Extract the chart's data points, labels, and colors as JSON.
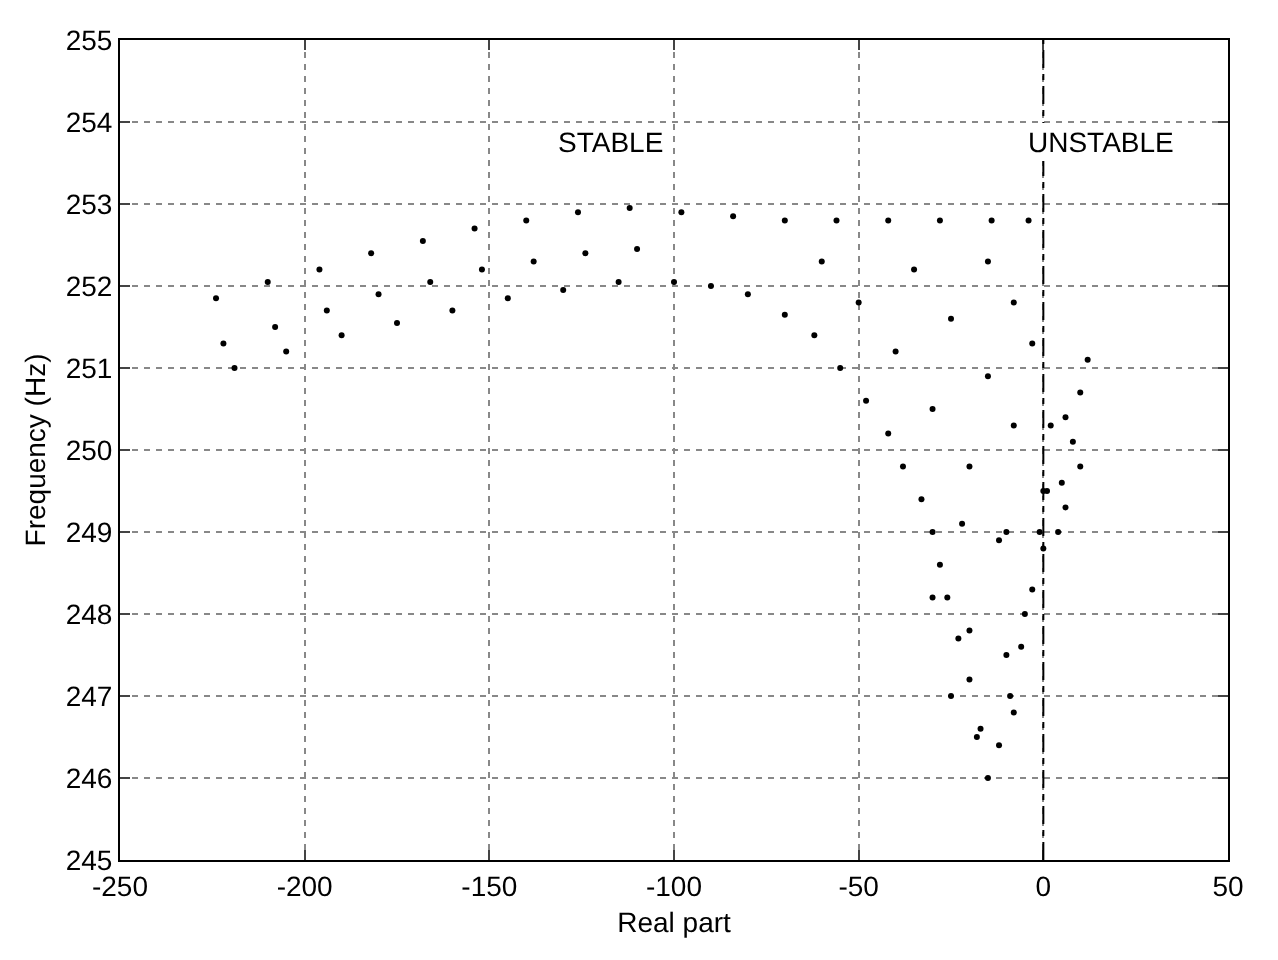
{
  "chart_data": {
    "type": "scatter",
    "xlabel": "Real part",
    "ylabel": "Frequency (Hz)",
    "xlim": [
      -250,
      50
    ],
    "xticks": [
      -250,
      -200,
      -150,
      -100,
      -50,
      0,
      50
    ],
    "ylim": [
      245,
      255
    ],
    "yticks": [
      245,
      246,
      247,
      248,
      249,
      250,
      251,
      252,
      253,
      254,
      255
    ],
    "grid": true,
    "marker": "circle",
    "ref_lines": [
      {
        "axis": "x",
        "value": 0,
        "color": "#000000",
        "line_style": "dashdot"
      }
    ],
    "annotations": [
      "STABLE",
      "UNSTABLE"
    ],
    "series": [
      {
        "color": "#000000",
        "x": [
          -224,
          -210,
          -196,
          -182,
          -168,
          -154,
          -140,
          -126,
          -112,
          -98,
          -84,
          -70,
          -56,
          -42,
          -28,
          -14,
          -4,
          -219,
          -205,
          -190,
          -175,
          -160,
          -145,
          -130,
          -115,
          -100,
          -90,
          -80,
          -70,
          -62,
          -55,
          -48,
          -42,
          -38,
          -33,
          -30,
          -28,
          -26,
          -23,
          -20,
          -17,
          -15,
          -222,
          -208,
          -194,
          -180,
          -166,
          -152,
          -138,
          -124,
          -110,
          -60,
          -50,
          -40,
          -30,
          -20,
          -10,
          -35,
          -25,
          -15,
          -8,
          -15,
          -8,
          -3,
          -22,
          -12,
          -30,
          -20,
          -10,
          -25,
          -5,
          -18,
          -8,
          -12,
          -9,
          -6,
          -3,
          -1,
          0,
          12,
          10,
          6,
          2,
          8,
          10,
          5,
          1,
          6,
          4,
          0
        ],
        "values": [
          251.85,
          252.05,
          252.2,
          252.4,
          252.55,
          252.7,
          252.8,
          252.9,
          252.95,
          252.9,
          252.85,
          252.8,
          252.8,
          252.8,
          252.8,
          252.8,
          252.8,
          251.0,
          251.2,
          251.4,
          251.55,
          251.7,
          251.85,
          251.95,
          252.05,
          252.05,
          252.0,
          251.9,
          251.65,
          251.4,
          251.0,
          250.6,
          250.2,
          249.8,
          249.4,
          249.0,
          248.6,
          248.2,
          247.7,
          247.2,
          246.6,
          246.0,
          251.3,
          251.5,
          251.7,
          251.9,
          252.05,
          252.2,
          252.3,
          252.4,
          252.45,
          252.3,
          251.8,
          251.2,
          250.5,
          249.8,
          249.0,
          252.2,
          251.6,
          250.9,
          250.3,
          252.3,
          251.8,
          251.3,
          249.1,
          248.9,
          248.2,
          247.8,
          247.5,
          247.0,
          248.0,
          246.5,
          246.8,
          246.4,
          247.0,
          247.6,
          248.3,
          249.0,
          249.5,
          251.1,
          250.7,
          250.4,
          250.3,
          250.1,
          249.8,
          249.6,
          249.5,
          249.3,
          249.0,
          248.8
        ]
      }
    ]
  }
}
